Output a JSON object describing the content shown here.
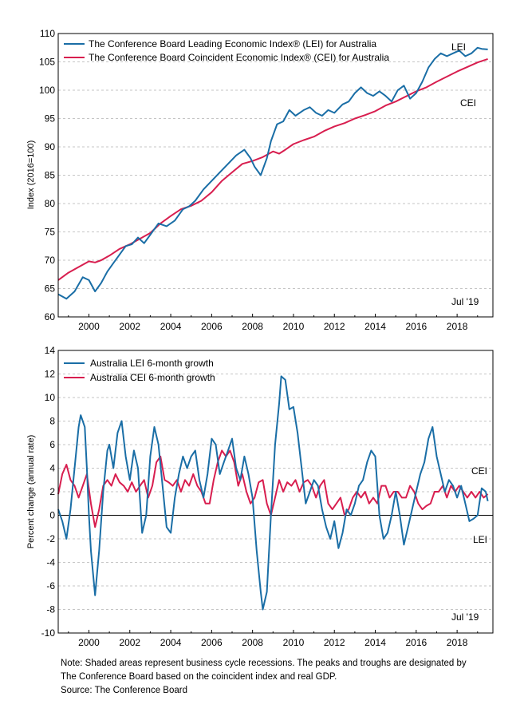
{
  "colors": {
    "lei": "#1a6ea6",
    "cei": "#d81e4f",
    "grid": "#b3b3b3",
    "zero": "#000000"
  },
  "chart_data": [
    {
      "type": "line",
      "id": "index",
      "ylabel": "Index (2016=100)",
      "ylim": [
        60,
        110
      ],
      "yticks": [
        60,
        65,
        70,
        75,
        80,
        85,
        90,
        95,
        100,
        105,
        110
      ],
      "xlim": [
        1998.5,
        2019.75
      ],
      "xticks": [
        2000,
        2002,
        2004,
        2006,
        2008,
        2010,
        2012,
        2014,
        2016,
        2018
      ],
      "annotations": {
        "lei": "LEI",
        "cei": "CEI",
        "date": "Jul '19"
      },
      "series": [
        {
          "key": "lei",
          "name": "The Conference Board Leading Economic Index®  (LEI) for Australia",
          "x": [
            1998.5,
            1998.9,
            1999.3,
            1999.7,
            2000.0,
            2000.3,
            2000.6,
            2000.9,
            2001.2,
            2001.5,
            2001.8,
            2002.1,
            2002.4,
            2002.7,
            2003.0,
            2003.4,
            2003.8,
            2004.2,
            2004.6,
            2004.9,
            2005.2,
            2005.6,
            2006.0,
            2006.4,
            2006.8,
            2007.2,
            2007.6,
            2007.9,
            2008.1,
            2008.4,
            2008.7,
            2008.9,
            2009.2,
            2009.5,
            2009.8,
            2010.1,
            2010.5,
            2010.8,
            2011.1,
            2011.4,
            2011.7,
            2012.0,
            2012.4,
            2012.7,
            2013.0,
            2013.3,
            2013.6,
            2013.9,
            2014.2,
            2014.5,
            2014.8,
            2015.1,
            2015.4,
            2015.7,
            2016.0,
            2016.3,
            2016.6,
            2016.9,
            2017.2,
            2017.5,
            2017.8,
            2018.1,
            2018.4,
            2018.7,
            2019.0,
            2019.2,
            2019.5
          ],
          "values": [
            64.0,
            63.2,
            64.5,
            67.0,
            66.5,
            64.5,
            66.0,
            68.0,
            69.5,
            71.0,
            72.5,
            72.8,
            74.0,
            73.0,
            74.5,
            76.5,
            76.0,
            77.0,
            79.0,
            79.5,
            80.5,
            82.5,
            84.0,
            85.5,
            87.0,
            88.5,
            89.5,
            88.0,
            86.5,
            85.0,
            88.0,
            91.0,
            94.0,
            94.5,
            96.5,
            95.5,
            96.5,
            97.0,
            96.0,
            95.5,
            96.5,
            96.0,
            97.5,
            98.0,
            99.5,
            100.5,
            99.5,
            99.0,
            99.8,
            99.0,
            98.0,
            100.0,
            100.8,
            98.5,
            99.5,
            101.5,
            104.0,
            105.5,
            106.5,
            106.0,
            106.5,
            107.0,
            106.0,
            106.5,
            107.5,
            107.3,
            107.2
          ]
        },
        {
          "key": "cei",
          "name": "The Conference Board Coincident Economic Index®  (CEI) for Australia",
          "x": [
            1998.5,
            1999.0,
            1999.5,
            2000.0,
            2000.3,
            2000.6,
            2001.0,
            2001.5,
            2002.0,
            2002.5,
            2003.0,
            2003.5,
            2004.0,
            2004.5,
            2005.0,
            2005.5,
            2006.0,
            2006.5,
            2007.0,
            2007.5,
            2008.0,
            2008.5,
            2009.0,
            2009.3,
            2009.6,
            2010.0,
            2010.5,
            2011.0,
            2011.5,
            2012.0,
            2012.5,
            2013.0,
            2013.5,
            2014.0,
            2014.5,
            2015.0,
            2015.5,
            2016.0,
            2016.5,
            2017.0,
            2017.5,
            2018.0,
            2018.5,
            2019.0,
            2019.5
          ],
          "values": [
            66.5,
            67.8,
            68.8,
            69.8,
            69.6,
            70.0,
            70.8,
            72.0,
            72.8,
            73.8,
            74.8,
            76.5,
            77.8,
            79.0,
            79.6,
            80.5,
            82.0,
            84.0,
            85.5,
            87.0,
            87.5,
            88.2,
            89.2,
            88.8,
            89.5,
            90.5,
            91.2,
            91.8,
            92.8,
            93.6,
            94.2,
            95.0,
            95.6,
            96.3,
            97.3,
            98.0,
            98.9,
            99.8,
            100.5,
            101.5,
            102.4,
            103.3,
            104.1,
            104.9,
            105.5
          ]
        }
      ]
    },
    {
      "type": "line",
      "id": "growth",
      "ylabel": "Percent change (annual rate)",
      "ylim": [
        -10,
        14
      ],
      "yticks": [
        -10,
        -8,
        -6,
        -4,
        -2,
        0,
        2,
        4,
        6,
        8,
        10,
        12,
        14
      ],
      "xlim": [
        1998.5,
        2019.75
      ],
      "xticks": [
        2000,
        2002,
        2004,
        2006,
        2008,
        2010,
        2012,
        2014,
        2016,
        2018
      ],
      "annotations": {
        "lei": "LEI",
        "cei": "CEI",
        "date": "Jul '19"
      },
      "series": [
        {
          "key": "lei",
          "name": "Australia LEI 6-month growth",
          "x": [
            1998.5,
            1998.7,
            1998.9,
            1999.1,
            1999.3,
            1999.5,
            1999.6,
            1999.8,
            1999.9,
            2000.0,
            2000.1,
            2000.3,
            2000.5,
            2000.7,
            2000.9,
            2001.0,
            2001.2,
            2001.4,
            2001.6,
            2001.8,
            2002.0,
            2002.2,
            2002.4,
            2002.6,
            2002.8,
            2003.0,
            2003.2,
            2003.4,
            2003.6,
            2003.8,
            2004.0,
            2004.2,
            2004.4,
            2004.6,
            2004.8,
            2005.0,
            2005.2,
            2005.4,
            2005.6,
            2005.8,
            2006.0,
            2006.2,
            2006.4,
            2006.6,
            2006.8,
            2007.0,
            2007.2,
            2007.4,
            2007.6,
            2007.8,
            2008.0,
            2008.2,
            2008.4,
            2008.5,
            2008.7,
            2008.9,
            2009.1,
            2009.3,
            2009.4,
            2009.6,
            2009.8,
            2010.0,
            2010.2,
            2010.4,
            2010.6,
            2010.8,
            2011.0,
            2011.2,
            2011.4,
            2011.6,
            2011.8,
            2012.0,
            2012.2,
            2012.4,
            2012.6,
            2012.8,
            2013.0,
            2013.2,
            2013.4,
            2013.6,
            2013.8,
            2014.0,
            2014.2,
            2014.4,
            2014.6,
            2014.8,
            2015.0,
            2015.2,
            2015.4,
            2015.6,
            2015.8,
            2016.0,
            2016.2,
            2016.4,
            2016.6,
            2016.8,
            2017.0,
            2017.2,
            2017.4,
            2017.6,
            2017.8,
            2018.0,
            2018.2,
            2018.4,
            2018.6,
            2018.8,
            2019.0,
            2019.2,
            2019.4,
            2019.5
          ],
          "values": [
            0.5,
            -0.5,
            -2.0,
            0.5,
            4.0,
            7.5,
            8.5,
            7.5,
            4.0,
            0.0,
            -3.0,
            -6.8,
            -3.0,
            2.0,
            5.5,
            6.0,
            4.0,
            7.0,
            8.0,
            5.0,
            3.0,
            5.5,
            4.0,
            -1.5,
            0.0,
            5.0,
            7.5,
            6.0,
            2.5,
            -1.0,
            -1.5,
            1.5,
            3.5,
            5.0,
            4.0,
            5.0,
            5.5,
            3.0,
            1.5,
            3.5,
            6.5,
            6.0,
            3.5,
            4.5,
            5.5,
            6.5,
            4.0,
            3.0,
            5.0,
            3.5,
            1.5,
            -3.0,
            -6.5,
            -8.0,
            -6.5,
            0.0,
            6.0,
            9.5,
            11.8,
            11.5,
            9.0,
            9.2,
            7.0,
            4.0,
            1.0,
            2.0,
            3.0,
            2.5,
            0.5,
            -1.0,
            -2.0,
            -0.5,
            -2.8,
            -1.5,
            0.5,
            0.0,
            1.0,
            2.5,
            3.0,
            4.5,
            5.5,
            5.0,
            0.0,
            -2.0,
            -1.5,
            0.0,
            2.0,
            0.0,
            -2.5,
            -1.0,
            0.5,
            2.0,
            3.5,
            4.5,
            6.5,
            7.5,
            5.0,
            3.5,
            2.0,
            3.0,
            2.5,
            1.5,
            2.5,
            1.0,
            -0.5,
            -0.3,
            0.0,
            2.3,
            2.0,
            1.2
          ]
        },
        {
          "key": "cei",
          "name": "Australia CEI 6-month growth",
          "x": [
            1998.5,
            1998.7,
            1998.9,
            1999.1,
            1999.3,
            1999.5,
            1999.7,
            1999.9,
            2000.1,
            2000.3,
            2000.5,
            2000.7,
            2000.9,
            2001.1,
            2001.3,
            2001.5,
            2001.7,
            2001.9,
            2002.1,
            2002.3,
            2002.5,
            2002.7,
            2002.9,
            2003.1,
            2003.3,
            2003.5,
            2003.7,
            2003.9,
            2004.1,
            2004.3,
            2004.5,
            2004.7,
            2004.9,
            2005.1,
            2005.3,
            2005.5,
            2005.7,
            2005.9,
            2006.1,
            2006.3,
            2006.5,
            2006.7,
            2006.9,
            2007.1,
            2007.3,
            2007.5,
            2007.7,
            2007.9,
            2008.1,
            2008.3,
            2008.5,
            2008.7,
            2008.9,
            2009.1,
            2009.3,
            2009.5,
            2009.7,
            2009.9,
            2010.1,
            2010.3,
            2010.5,
            2010.7,
            2010.9,
            2011.1,
            2011.3,
            2011.5,
            2011.7,
            2011.9,
            2012.1,
            2012.3,
            2012.5,
            2012.7,
            2012.9,
            2013.1,
            2013.3,
            2013.5,
            2013.7,
            2013.9,
            2014.1,
            2014.3,
            2014.5,
            2014.7,
            2014.9,
            2015.1,
            2015.3,
            2015.5,
            2015.7,
            2015.9,
            2016.1,
            2016.3,
            2016.5,
            2016.7,
            2016.9,
            2017.1,
            2017.3,
            2017.5,
            2017.7,
            2017.9,
            2018.1,
            2018.3,
            2018.5,
            2018.7,
            2018.9,
            2019.1,
            2019.3,
            2019.5
          ],
          "values": [
            1.8,
            3.5,
            4.3,
            3.0,
            2.5,
            1.5,
            2.5,
            3.5,
            1.0,
            -1.0,
            0.5,
            2.5,
            3.0,
            2.5,
            3.5,
            2.8,
            2.5,
            2.0,
            2.8,
            2.0,
            2.5,
            3.0,
            1.5,
            2.5,
            4.5,
            5.0,
            3.0,
            2.8,
            2.5,
            3.0,
            2.0,
            3.0,
            2.5,
            3.5,
            2.5,
            2.0,
            1.0,
            1.0,
            3.0,
            4.5,
            5.5,
            5.0,
            5.5,
            4.5,
            2.5,
            3.5,
            2.0,
            1.0,
            1.5,
            2.8,
            3.0,
            1.0,
            0.0,
            1.5,
            3.0,
            2.0,
            2.8,
            2.5,
            3.0,
            2.0,
            2.8,
            3.0,
            2.5,
            1.5,
            2.5,
            3.0,
            1.0,
            0.5,
            1.0,
            1.5,
            0.0,
            0.5,
            1.5,
            2.0,
            1.5,
            2.0,
            1.0,
            1.5,
            1.0,
            2.5,
            2.5,
            1.5,
            2.0,
            2.0,
            1.5,
            1.5,
            2.5,
            2.0,
            1.0,
            0.5,
            0.8,
            1.0,
            2.0,
            2.0,
            2.5,
            1.5,
            2.5,
            2.0,
            2.5,
            2.0,
            1.5,
            2.0,
            1.5,
            2.0,
            1.5,
            1.8
          ]
        }
      ]
    }
  ],
  "footnote": {
    "line1": "Note: Shaded areas represent business cycle recessions. The peaks and troughs are designated by",
    "line2": "The Conference Board based on the coincident index and real GDP.",
    "line3": "Source: The Conference Board"
  }
}
